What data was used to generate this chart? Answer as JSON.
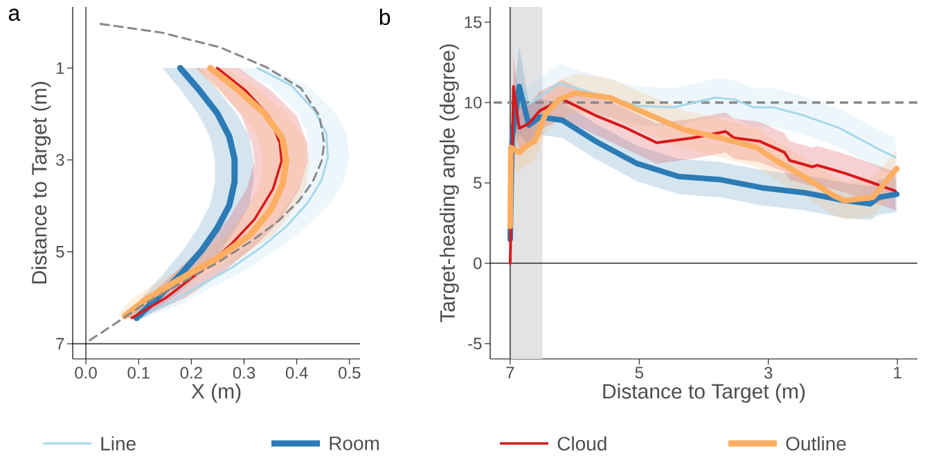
{
  "chart_data": [
    {
      "type": "line",
      "title": "a",
      "xlabel": "X (m)",
      "ylabel": "Distance to Target (m)",
      "orientation": "horizontal",
      "legend": "bottom",
      "xlim": [
        -0.025,
        0.52
      ],
      "ylim": [
        7.33,
        -0.33
      ],
      "xticks": [
        {
          "value": 0,
          "label": "0.0"
        },
        {
          "value": 0.1,
          "label": "0.1"
        },
        {
          "value": 0.2,
          "label": "0.2"
        },
        {
          "value": 0.3,
          "label": "0.3"
        },
        {
          "value": 0.4,
          "label": "0.4"
        },
        {
          "value": 0.5,
          "label": "0.5"
        }
      ],
      "yticks": [
        1,
        3,
        5,
        7
      ],
      "ref_lines": [
        {
          "axis": "x",
          "value": 0,
          "color": "#000000"
        },
        {
          "axis": "y",
          "value": 7,
          "color": "#000000"
        }
      ],
      "series": [
        {
          "name": "Line",
          "color": "#a6d8ea",
          "x": [
            1,
            1.38,
            1.93,
            2.43,
            2.94,
            3.44,
            3.93,
            4.44,
            4.89,
            5.35,
            5.74,
            6.14,
            6.41
          ],
          "values": [
            0.325,
            0.39,
            0.434,
            0.456,
            0.459,
            0.447,
            0.421,
            0.381,
            0.334,
            0.276,
            0.215,
            0.153,
            0.104
          ],
          "lower": [
            0.28,
            0.35,
            0.4,
            0.42,
            0.42,
            0.41,
            0.385,
            0.35,
            0.305,
            0.25,
            0.19,
            0.13,
            0.09
          ],
          "upper": [
            0.35,
            0.42,
            0.47,
            0.495,
            0.5,
            0.49,
            0.465,
            0.42,
            0.37,
            0.31,
            0.245,
            0.18,
            0.12
          ]
        },
        {
          "name": "Room",
          "color": "#2c7bb6",
          "x": [
            1,
            1.48,
            1.98,
            2.49,
            2.98,
            3.48,
            3.99,
            4.49,
            4.98,
            5.5,
            5.95,
            6.44
          ],
          "values": [
            0.179,
            0.215,
            0.249,
            0.272,
            0.282,
            0.282,
            0.272,
            0.249,
            0.219,
            0.179,
            0.14,
            0.096
          ],
          "lower": [
            0.145,
            0.18,
            0.212,
            0.235,
            0.245,
            0.245,
            0.235,
            0.212,
            0.183,
            0.145,
            0.11,
            0.08
          ],
          "upper": [
            0.215,
            0.25,
            0.285,
            0.31,
            0.318,
            0.318,
            0.31,
            0.285,
            0.255,
            0.215,
            0.17,
            0.11
          ]
        },
        {
          "name": "Cloud",
          "color": "#d7191c",
          "x": [
            1,
            1.48,
            2.04,
            2.64,
            3.03,
            3.63,
            4.29,
            4.83,
            5.44,
            5.99,
            6.44
          ],
          "values": [
            0.249,
            0.302,
            0.347,
            0.368,
            0.371,
            0.355,
            0.32,
            0.276,
            0.215,
            0.153,
            0.087
          ],
          "lower": [
            0.21,
            0.255,
            0.295,
            0.315,
            0.32,
            0.305,
            0.27,
            0.225,
            0.17,
            0.115,
            0.07
          ],
          "upper": [
            0.29,
            0.35,
            0.4,
            0.42,
            0.42,
            0.405,
            0.37,
            0.325,
            0.26,
            0.19,
            0.105
          ]
        },
        {
          "name": "Outline",
          "color": "#fdae61",
          "x": [
            1,
            1.44,
            1.98,
            2.53,
            3.03,
            3.54,
            4.08,
            4.64,
            5.14,
            5.59,
            6.04,
            6.4
          ],
          "values": [
            0.236,
            0.285,
            0.338,
            0.373,
            0.38,
            0.373,
            0.351,
            0.311,
            0.249,
            0.179,
            0.113,
            0.074
          ],
          "lower": [
            0.205,
            0.245,
            0.295,
            0.328,
            0.335,
            0.328,
            0.305,
            0.265,
            0.21,
            0.145,
            0.085,
            0.06
          ],
          "upper": [
            0.265,
            0.325,
            0.38,
            0.415,
            0.425,
            0.418,
            0.395,
            0.355,
            0.29,
            0.215,
            0.14,
            0.09
          ]
        },
        {
          "color": "#888888",
          "line_style": "dashed",
          "x": [
            0.04,
            0.23,
            0.55,
            0.98,
            1.44,
            2.04,
            2.64,
            3.03,
            3.48,
            3.89,
            4.34,
            4.79,
            5.24,
            5.69,
            6.14,
            6.55,
            6.92,
            7
          ],
          "values": [
            0.028,
            0.144,
            0.255,
            0.342,
            0.408,
            0.443,
            0.452,
            0.447,
            0.43,
            0.404,
            0.364,
            0.311,
            0.249,
            0.179,
            0.11,
            0.057,
            0.008,
            0
          ]
        }
      ]
    },
    {
      "type": "line",
      "title": "b",
      "xlabel": "Distance to Target (m)",
      "ylabel": "Target-heading angle (degree)",
      "xlim": [
        7.31,
        0.69
      ],
      "ylim": [
        -5.95,
        15.95
      ],
      "xticks": [
        7,
        5,
        3,
        1
      ],
      "yticks": [
        -5,
        0,
        5,
        10,
        15
      ],
      "ref_lines": [
        {
          "axis": "x",
          "value": 7,
          "color": "#000000"
        },
        {
          "axis": "y",
          "value": 0,
          "color": "#000000"
        },
        {
          "axis": "y",
          "value": 10,
          "color": "#888888",
          "line_style": "dashed"
        }
      ],
      "bands": [
        {
          "axis": "x",
          "from": 7,
          "to": 6.5,
          "color": "#e3e3e3"
        }
      ],
      "series": [
        {
          "color": "#a6d8ea",
          "x": [
            6.95,
            6.71,
            6.24,
            5.68,
            5.03,
            4.47,
            3.83,
            3.53,
            3.23,
            2.92,
            2.45,
            1.89,
            1.29,
            1.03
          ],
          "values": [
            null,
            9.9,
            11.2,
            null,
            9.8,
            9.7,
            10.3,
            10.2,
            9.7,
            9.7,
            9.2,
            8.4,
            7.1,
            6.6
          ],
          "lower": [
            7.8,
            8.7,
            10,
            9.3,
            8.6,
            8.5,
            9.1,
            9,
            8.5,
            8.5,
            8,
            7.2,
            5.9,
            5.4
          ],
          "upper": [
            10.2,
            11.1,
            12.4,
            11.7,
            11,
            10.9,
            11.5,
            11.4,
            10.9,
            10.9,
            10.4,
            9.6,
            8.3,
            7.8
          ]
        },
        {
          "color": "#2c7bb6",
          "x": [
            7,
            6.97,
            6.86,
            6.71,
            6.54,
            6.19,
            5.68,
            5.03,
            4.39,
            3.74,
            3.1,
            2.45,
            1.81,
            1.42,
            1.29,
            1.01
          ],
          "values": [
            1.5,
            7.8,
            11,
            8.6,
            9.1,
            8.9,
            7.6,
            6.2,
            5.4,
            5.2,
            4.7,
            4.4,
            3.9,
            3.7,
            4.1,
            4.3
          ],
          "lower": [
            0.5,
            6,
            8,
            7.4,
            8,
            7.8,
            6.5,
            5.1,
            4.3,
            4.1,
            3.6,
            3.3,
            2.8,
            2.7,
            3,
            3.2
          ],
          "upper": [
            2.5,
            9.6,
            13.5,
            10,
            10.2,
            10,
            8.7,
            7.3,
            6.5,
            6.3,
            5.8,
            5.5,
            5,
            4.8,
            5.2,
            5.4
          ]
        },
        {
          "color": "#d7191c",
          "x": [
            7,
            6.95,
            6.86,
            6.71,
            6.54,
            6.19,
            5.68,
            5.25,
            4.73,
            4.17,
            3.66,
            3.53,
            3.14,
            2.75,
            2.67,
            2.32,
            2.24,
            1.81,
            1.38,
            1.03
          ],
          "values": [
            0,
            11,
            8.4,
            8.7,
            9.5,
            10.2,
            9.2,
            8.5,
            7.5,
            7.8,
            8.2,
            7.8,
            7.6,
            6.9,
            6.4,
            6,
            6.1,
            5.6,
            5,
            4.5
          ],
          "lower": [
            0,
            9,
            7,
            7.5,
            8.3,
            9,
            8,
            7.2,
            6.2,
            6.5,
            6.9,
            6.5,
            6.3,
            5.7,
            5.2,
            4.8,
            4.9,
            4.4,
            3.8,
            3.3
          ],
          "upper": [
            1,
            13,
            9.8,
            9.9,
            10.7,
            11.4,
            10.4,
            9.7,
            8.7,
            9,
            9.4,
            9,
            8.8,
            8.1,
            7.6,
            7.2,
            7.3,
            6.8,
            6.2,
            5.7
          ]
        },
        {
          "color": "#fdae61",
          "x": [
            7,
            6.99,
            6.86,
            6.75,
            6.62,
            6.45,
            6.24,
            5.98,
            5.46,
            4.82,
            4.3,
            3.74,
            3.18,
            2.88,
            2.41,
            1.98,
            1.81,
            1.38,
            1.01
          ],
          "values": [
            2.3,
            7.2,
            6.9,
            7.3,
            7.6,
            9.3,
            10.2,
            10.6,
            10.3,
            9.2,
            8.3,
            7.8,
            7.2,
            6.4,
            5.3,
            4.2,
            3.9,
            4.1,
            5.9
          ],
          "lower": [
            1.1,
            6,
            5.7,
            6.1,
            6.4,
            8.1,
            9,
            9.4,
            9.1,
            8,
            7.1,
            6.6,
            6,
            5.2,
            4.1,
            3,
            2.7,
            2.9,
            4.7
          ],
          "upper": [
            3.5,
            8.4,
            8.1,
            8.5,
            8.8,
            10.5,
            11.4,
            11.8,
            11.5,
            10.4,
            9.5,
            9,
            8.4,
            7.6,
            6.5,
            5.4,
            5.1,
            5.3,
            7.1
          ]
        }
      ]
    }
  ]
}
